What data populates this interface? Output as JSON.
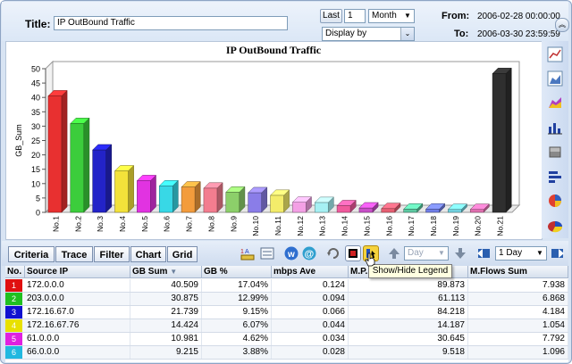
{
  "controls": {
    "title_label": "Title:",
    "title_value": "IP OutBound Traffic",
    "last_label": "Last",
    "last_count": "1",
    "period": "Month",
    "display_by": "Display by",
    "from_label": "From:",
    "from_value": "2006-02-28 00:00:00",
    "to_label": "To:",
    "to_value": "2006-03-30 23:59:59"
  },
  "chart_data": {
    "type": "bar",
    "title": "IP OutBound Traffic",
    "ylabel": "GB_Sum",
    "xlabel": "",
    "ylim": [
      0,
      50
    ],
    "yticks": [
      0,
      5,
      10,
      15,
      20,
      25,
      30,
      35,
      40,
      45,
      50
    ],
    "categories": [
      "No.1",
      "No.2",
      "No.3",
      "No.4",
      "No.5",
      "No.6",
      "No.7",
      "No.8",
      "No.9",
      "No.10",
      "No.11",
      "No.12",
      "No.13",
      "No.14",
      "No.15",
      "No.16",
      "No.17",
      "No.18",
      "No.19",
      "No.20",
      "No.21"
    ],
    "values": [
      40.5,
      30.9,
      21.7,
      14.4,
      11.0,
      9.2,
      8.8,
      8.4,
      7.0,
      6.8,
      5.9,
      3.5,
      3.4,
      2.3,
      1.5,
      1.3,
      1.1,
      1.1,
      1.0,
      1.0,
      48.3
    ],
    "colors": [
      "#e83030",
      "#3ccd3c",
      "#2323c8",
      "#f3e23a",
      "#e133e1",
      "#38d8e6",
      "#f39c3c",
      "#f37d8f",
      "#8ccf6a",
      "#8a7de8",
      "#f3ec6a",
      "#f3a0e5",
      "#a6f0f3",
      "#f05a9d",
      "#c74fc7",
      "#e65f73",
      "#5cc7a0",
      "#6f7de6",
      "#72d2e0",
      "#e070b0",
      "#2f2f2f"
    ],
    "grid": false
  },
  "sidebar": {
    "icons": [
      "line-chart-icon",
      "area-chart-icon",
      "3d-area-chart-icon",
      "bar-chart-icon",
      "stacked-chart-icon",
      "hbar-chart-icon",
      "pie-chart-icon",
      "3d-pie-chart-icon"
    ]
  },
  "toolbar": {
    "tabs": [
      "Criteria",
      "Trace",
      "Filter",
      "Chart",
      "Grid"
    ],
    "day_placeholder": "Day",
    "interval": "1 Day",
    "tooltip": "Show/Hide Legend"
  },
  "table": {
    "headers": [
      "No.",
      "Source IP",
      "GB Sum",
      "GB %",
      "mbps Ave",
      "M.P...",
      "M.Flows Sum"
    ],
    "rows": [
      {
        "no": "1",
        "ip": "172.0.0.0",
        "gb": "40.509",
        "pct": "17.04%",
        "mbps": "0.124",
        "mp": "89.873",
        "flows": "7.938",
        "color": "#e01010"
      },
      {
        "no": "2",
        "ip": "203.0.0.0",
        "gb": "30.875",
        "pct": "12.99%",
        "mbps": "0.094",
        "mp": "61.113",
        "flows": "6.868",
        "color": "#20c020"
      },
      {
        "no": "3",
        "ip": "172.16.67.0",
        "gb": "21.739",
        "pct": "9.15%",
        "mbps": "0.066",
        "mp": "84.218",
        "flows": "4.184",
        "color": "#1010d0"
      },
      {
        "no": "4",
        "ip": "172.16.67.76",
        "gb": "14.424",
        "pct": "6.07%",
        "mbps": "0.044",
        "mp": "14.187",
        "flows": "1.054",
        "color": "#e8e000"
      },
      {
        "no": "5",
        "ip": "61.0.0.0",
        "gb": "10.981",
        "pct": "4.62%",
        "mbps": "0.034",
        "mp": "30.645",
        "flows": "7.792",
        "color": "#e020e0"
      },
      {
        "no": "6",
        "ip": "66.0.0.0",
        "gb": "9.215",
        "pct": "3.88%",
        "mbps": "0.028",
        "mp": "9.518",
        "flows": "1.096",
        "color": "#20b8e0"
      }
    ]
  }
}
